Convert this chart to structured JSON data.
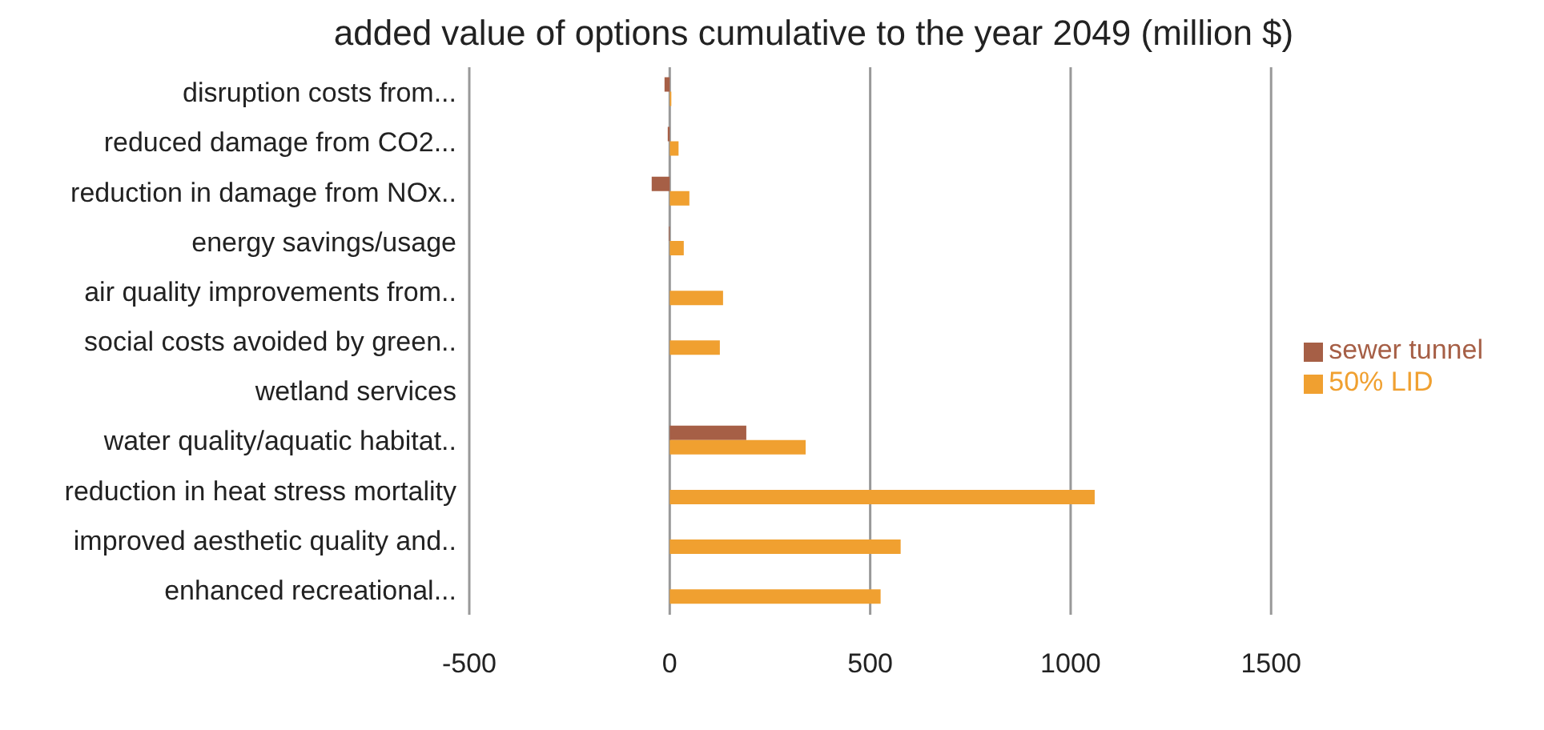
{
  "chart_data": {
    "type": "bar",
    "orientation": "horizontal",
    "title": "added value of options cumulative to the year 2049 (million $)",
    "categories": [
      "disruption costs from...",
      "reduced damage from CO2...",
      "reduction in damage from NOx..",
      "energy savings/usage",
      "air quality improvements from..",
      "social costs avoided by green..",
      "wetland services",
      "water quality/aquatic habitat..",
      "reduction in heat stress mortality",
      "improved aesthetic quality and..",
      "enhanced recreational..."
    ],
    "series": [
      {
        "name": "sewer tunnel",
        "color": "#a65f46",
        "values": [
          -13,
          -5,
          -45,
          -2,
          0,
          0,
          0,
          191,
          0,
          0,
          0
        ]
      },
      {
        "name": "50% LID",
        "color": "#f0a030",
        "values": [
          4,
          22,
          49,
          35,
          133,
          125,
          0,
          339,
          1060,
          576,
          526
        ]
      }
    ],
    "xlim": [
      -500,
      1500
    ],
    "xticks": [
      -500,
      0,
      500,
      1000,
      1500
    ],
    "grid": "x",
    "legend": "right"
  }
}
